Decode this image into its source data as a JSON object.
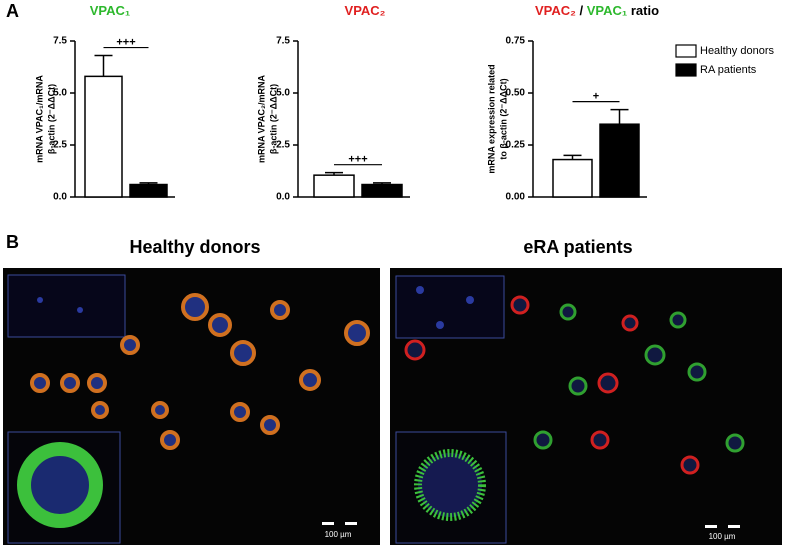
{
  "panels": {
    "a": "A",
    "b": "B"
  },
  "chart_data": [
    {
      "type": "bar",
      "title": [
        {
          "text": "VPAC₁",
          "color": "#2db82d"
        }
      ],
      "ylabel": [
        "mRNA VPAC₁/mRNA",
        "β-actin (2⁻ΔΔCt)"
      ],
      "categories": [
        null
      ],
      "series": [
        {
          "color": "#ffffff",
          "values": [
            5.8
          ],
          "errors": [
            1.0
          ]
        },
        {
          "color": "#000000",
          "values": [
            0.6
          ],
          "errors": [
            0.08
          ]
        }
      ],
      "ylim": [
        0,
        7.5
      ],
      "yticks": [
        {
          "value": 0,
          "label": "0.0"
        },
        {
          "value": 2.5,
          "label": "2.5"
        },
        {
          "value": 5,
          "label": "5.0"
        },
        {
          "value": 7.5,
          "label": "7.5"
        }
      ],
      "annotation": "+++"
    },
    {
      "type": "bar",
      "title": [
        {
          "text": "VPAC₂",
          "color": "#e02020"
        }
      ],
      "ylabel": [
        "mRNA VPAC₂/mRNA",
        "β-actin (2⁻ΔΔCt)"
      ],
      "categories": [
        null
      ],
      "series": [
        {
          "color": "#ffffff",
          "values": [
            1.05
          ],
          "errors": [
            0.12
          ]
        },
        {
          "color": "#000000",
          "values": [
            0.6
          ],
          "errors": [
            0.08
          ]
        }
      ],
      "ylim": [
        0,
        7.5
      ],
      "yticks": [
        {
          "value": 0,
          "label": "0.0"
        },
        {
          "value": 2.5,
          "label": "2.5"
        },
        {
          "value": 5,
          "label": "5.0"
        },
        {
          "value": 7.5,
          "label": "7.5"
        }
      ],
      "annotation": "+++"
    },
    {
      "type": "bar",
      "title": [
        {
          "text": "VPAC₂",
          "color": "#e02020"
        },
        {
          "text": " / ",
          "color": "#000000"
        },
        {
          "text": "VPAC₁",
          "color": "#2db82d"
        },
        {
          "text": " ratio",
          "color": "#000000"
        }
      ],
      "ylabel": [
        "mRNA expression related",
        "to β-actin (2⁻ΔΔCt)"
      ],
      "categories": [
        null
      ],
      "series": [
        {
          "name": "Healthy donors",
          "color": "#ffffff",
          "values": [
            0.18
          ],
          "errors": [
            0.02
          ]
        },
        {
          "name": "RA patients",
          "color": "#000000",
          "values": [
            0.35
          ],
          "errors": [
            0.07
          ]
        }
      ],
      "ylim": [
        0,
        0.75
      ],
      "yticks": [
        {
          "value": 0,
          "label": "0.00"
        },
        {
          "value": 0.25,
          "label": "0.25"
        },
        {
          "value": 0.5,
          "label": "0.50"
        },
        {
          "value": 0.75,
          "label": "0.75"
        }
      ],
      "annotation": "+",
      "legend": "top-right"
    }
  ],
  "images": [
    {
      "title": "Healthy donors",
      "scale_label": "100 µm"
    },
    {
      "title": "eRA patients",
      "scale_label": "100 µm"
    }
  ]
}
